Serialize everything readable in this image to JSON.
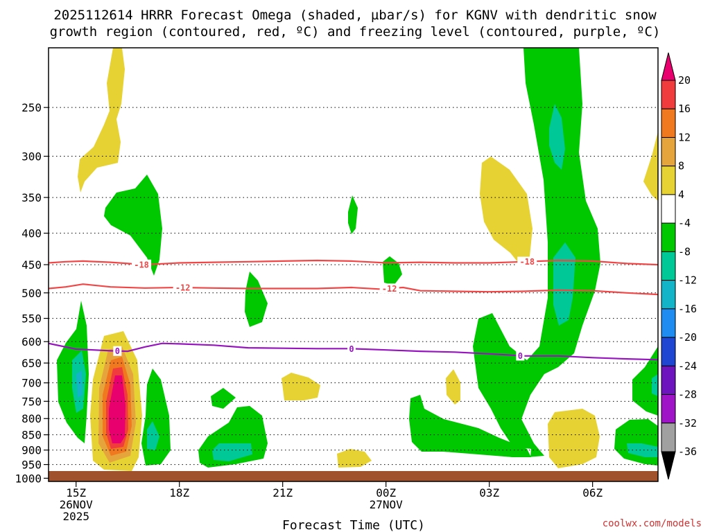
{
  "chart_data": {
    "type": "time-height cross-section",
    "title_line1": "2025112614 HRRR Forecast Omega (shaded, µbar/s) for KGNV with dendritic snow",
    "title_line2": "growth region (contoured, red, ºC) and freezing level (contoured, purple, ºC)",
    "xlabel": "Forecast Time (UTC)",
    "credit": "coolwx.com/models",
    "x_ticks": [
      {
        "hour": 15,
        "lines": [
          "15Z",
          "26NOV",
          "2025"
        ]
      },
      {
        "hour": 18,
        "lines": [
          "18Z"
        ]
      },
      {
        "hour": 21,
        "lines": [
          "21Z"
        ]
      },
      {
        "hour": 24,
        "lines": [
          "00Z",
          "27NOV"
        ]
      },
      {
        "hour": 27,
        "lines": [
          "03Z"
        ]
      },
      {
        "hour": 30,
        "lines": [
          "06Z"
        ]
      }
    ],
    "xlim_hours": [
      14.2,
      31.9
    ],
    "y_ticks": [
      "250",
      "300",
      "350",
      "400",
      "450",
      "500",
      "550",
      "600",
      "650",
      "700",
      "750",
      "800",
      "850",
      "900",
      "950",
      "1000"
    ],
    "ylim_hpa": [
      1012,
      200
    ],
    "colorbar": {
      "labels": [
        "20",
        "16",
        "12",
        "8",
        "4",
        "-4",
        "-8",
        "-12",
        "-16",
        "-20",
        "-24",
        "-28",
        "-32",
        "-36"
      ],
      "colors": [
        "#e8006e",
        "#f03c3c",
        "#f0781e",
        "#e6a53c",
        "#e6d232",
        "#ffffff",
        "#00c800",
        "#00c896",
        "#14b4c8",
        "#1e8cf0",
        "#1e46d2",
        "#6e14be",
        "#a014c8",
        "#a0a0a0",
        "#000000"
      ]
    },
    "contours": [
      {
        "name": "dgz-minus18",
        "value": -18,
        "label": "-18",
        "color": "#f04646",
        "points": [
          [
            14.2,
            447
          ],
          [
            14.7,
            445
          ],
          [
            15.2,
            444
          ],
          [
            16,
            446
          ],
          [
            17,
            450
          ],
          [
            18,
            447
          ],
          [
            19,
            446
          ],
          [
            20,
            445
          ],
          [
            21,
            444
          ],
          [
            22,
            443
          ],
          [
            23,
            444
          ],
          [
            24,
            447
          ],
          [
            25,
            446
          ],
          [
            26,
            447
          ],
          [
            27,
            447
          ],
          [
            28,
            445
          ],
          [
            29,
            443
          ],
          [
            30,
            444
          ],
          [
            31,
            448
          ],
          [
            31.9,
            450
          ]
        ],
        "label_hours": [
          16.9,
          28.1
        ]
      },
      {
        "name": "dgz-minus12",
        "value": -12,
        "label": "-12",
        "color": "#f04646",
        "points": [
          [
            14.2,
            492
          ],
          [
            14.7,
            489
          ],
          [
            15.2,
            484
          ],
          [
            16,
            489
          ],
          [
            17,
            491
          ],
          [
            18,
            490
          ],
          [
            19,
            491
          ],
          [
            20,
            492
          ],
          [
            21,
            492
          ],
          [
            22,
            492
          ],
          [
            23,
            490
          ],
          [
            23.8,
            493
          ],
          [
            24.5,
            490
          ],
          [
            25,
            496
          ],
          [
            26,
            497
          ],
          [
            27,
            498
          ],
          [
            28,
            497
          ],
          [
            29,
            495
          ],
          [
            30,
            496
          ],
          [
            31,
            500
          ],
          [
            31.9,
            503
          ]
        ],
        "label_hours": [
          18.1,
          24.1
        ]
      },
      {
        "name": "freezing-level",
        "value": 0,
        "label": "0",
        "color": "#9614be",
        "points": [
          [
            14.2,
            604
          ],
          [
            15,
            617
          ],
          [
            16,
            621
          ],
          [
            16.5,
            622
          ],
          [
            17,
            612
          ],
          [
            17.5,
            604
          ],
          [
            18,
            605
          ],
          [
            19,
            608
          ],
          [
            20,
            614
          ],
          [
            21,
            615
          ],
          [
            22,
            616
          ],
          [
            23,
            616
          ],
          [
            24,
            619
          ],
          [
            25,
            622
          ],
          [
            26,
            624
          ],
          [
            27,
            628
          ],
          [
            28,
            633
          ],
          [
            29,
            633
          ],
          [
            30,
            637
          ],
          [
            31,
            640
          ],
          [
            31.9,
            642
          ]
        ],
        "label_hours": [
          16.2,
          23.0,
          27.9
        ]
      }
    ],
    "regions": [
      {
        "name": "omega-yellow-upper-left",
        "category": "4"
      },
      {
        "name": "omega-green-upper-left",
        "category": "-8"
      },
      {
        "name": "omega-green-left-column",
        "category": "-8"
      },
      {
        "name": "omega-teal-left-column",
        "category": "-12"
      },
      {
        "name": "omega-ascent-core",
        "category": "20"
      },
      {
        "name": "omega-green-lower-left",
        "category": "-8"
      },
      {
        "name": "omega-green-lower-mid",
        "category": "-8"
      },
      {
        "name": "omega-yellow-mid",
        "category": "4"
      },
      {
        "name": "omega-green-mid-upper",
        "category": "-8"
      },
      {
        "name": "omega-green-right-column",
        "category": "-8"
      },
      {
        "name": "omega-teal-right-column",
        "category": "-12"
      },
      {
        "name": "omega-yellow-right",
        "category": "4"
      },
      {
        "name": "omega-green-lower-right",
        "category": "-8"
      }
    ],
    "ground": {
      "name": "terrain-below-ground",
      "color": "#a0522d"
    }
  }
}
